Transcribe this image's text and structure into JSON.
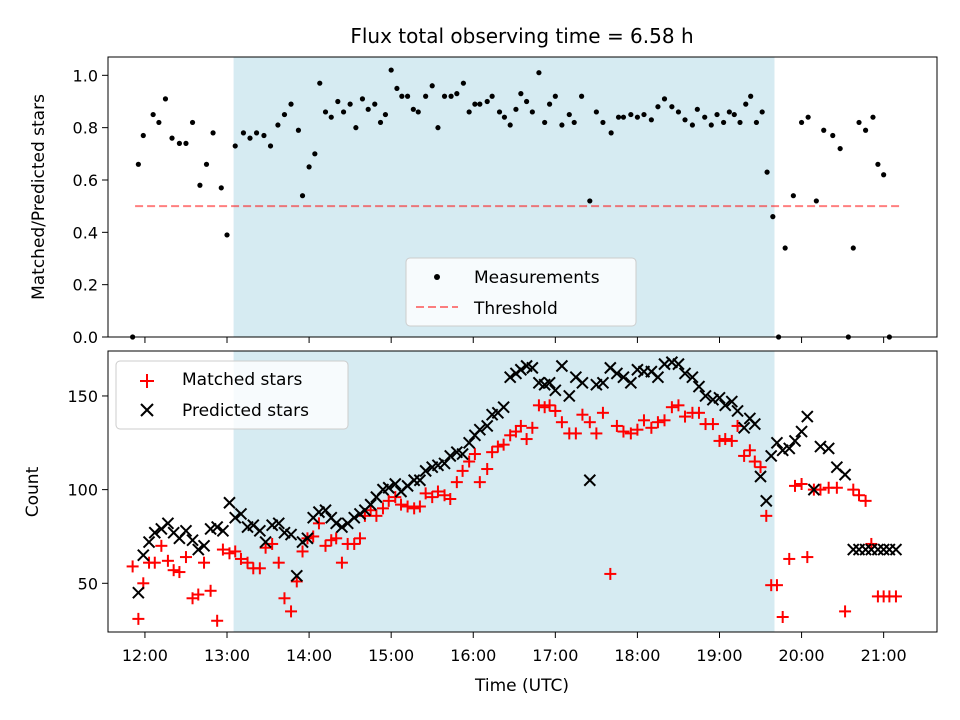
{
  "chart_data": [
    {
      "type": "scatter",
      "title": "Flux total observing time = 6.58 h",
      "ylabel": "Matched/Predicted stars",
      "xlabel": "",
      "xlim": [
        11.55,
        21.65
      ],
      "ylim": [
        0.0,
        1.07
      ],
      "yticks": [
        0.0,
        0.2,
        0.4,
        0.6,
        0.8,
        1.0
      ],
      "ytick_labels": [
        "0.0",
        "0.2",
        "0.4",
        "0.6",
        "0.8",
        "1.0"
      ],
      "xticks": [
        12,
        13,
        14,
        15,
        16,
        17,
        18,
        19,
        20,
        21
      ],
      "shaded_interval": [
        13.08,
        19.67
      ],
      "threshold": {
        "name": "Threshold",
        "x": [
          11.88,
          21.2
        ],
        "y": 0.5
      },
      "legend": {
        "placement": "lower-center",
        "entries": [
          "Measurements",
          "Threshold"
        ]
      },
      "series": [
        {
          "name": "Measurements",
          "x": [
            11.85,
            11.92,
            11.98,
            12.1,
            12.17,
            12.25,
            12.33,
            12.42,
            12.5,
            12.58,
            12.67,
            12.75,
            12.83,
            12.93,
            13.0,
            13.1,
            13.2,
            13.28,
            13.36,
            13.45,
            13.53,
            13.62,
            13.7,
            13.78,
            13.87,
            13.92,
            14.0,
            14.07,
            14.13,
            14.2,
            14.27,
            14.35,
            14.42,
            14.5,
            14.57,
            14.65,
            14.72,
            14.8,
            14.87,
            14.93,
            15.0,
            15.07,
            15.13,
            15.2,
            15.27,
            15.33,
            15.42,
            15.5,
            15.57,
            15.65,
            15.73,
            15.8,
            15.88,
            15.95,
            16.02,
            16.08,
            16.17,
            16.23,
            16.32,
            16.38,
            16.45,
            16.52,
            16.58,
            16.65,
            16.72,
            16.8,
            16.87,
            16.93,
            17.0,
            17.08,
            17.17,
            17.23,
            17.32,
            17.42,
            17.5,
            17.58,
            17.68,
            17.77,
            17.83,
            17.92,
            18.0,
            18.08,
            18.17,
            18.25,
            18.33,
            18.42,
            18.5,
            18.58,
            18.67,
            18.73,
            18.82,
            18.9,
            18.97,
            19.05,
            19.12,
            19.18,
            19.25,
            19.32,
            19.38,
            19.45,
            19.52,
            19.58,
            19.65,
            19.72,
            19.8,
            19.9,
            20.0,
            20.08,
            20.18,
            20.27,
            20.38,
            20.47,
            20.57,
            20.63,
            20.7,
            20.78,
            20.87,
            20.93,
            21.0,
            21.07
          ],
          "y": [
            0.0,
            0.66,
            0.77,
            0.85,
            0.82,
            0.91,
            0.76,
            0.74,
            0.74,
            0.82,
            0.58,
            0.66,
            0.78,
            0.57,
            0.39,
            0.73,
            0.78,
            0.76,
            0.78,
            0.77,
            0.73,
            0.81,
            0.85,
            0.89,
            0.79,
            0.54,
            0.65,
            0.7,
            0.97,
            0.86,
            0.84,
            0.9,
            0.86,
            0.89,
            0.8,
            0.91,
            0.87,
            0.89,
            0.82,
            0.85,
            1.02,
            0.95,
            0.92,
            0.92,
            0.87,
            0.86,
            0.92,
            0.96,
            0.8,
            0.92,
            0.92,
            0.93,
            0.97,
            0.86,
            0.89,
            0.89,
            0.9,
            0.92,
            0.86,
            0.84,
            0.81,
            0.87,
            0.93,
            0.9,
            0.86,
            1.01,
            0.82,
            0.89,
            0.92,
            0.81,
            0.85,
            0.82,
            0.92,
            0.52,
            0.86,
            0.82,
            0.78,
            0.84,
            0.84,
            0.85,
            0.84,
            0.85,
            0.83,
            0.88,
            0.91,
            0.88,
            0.86,
            0.83,
            0.81,
            0.87,
            0.84,
            0.81,
            0.85,
            0.82,
            0.86,
            0.85,
            0.82,
            0.89,
            0.92,
            0.82,
            0.86,
            0.63,
            0.46,
            0.0,
            0.34,
            0.54,
            0.82,
            0.84,
            0.52,
            0.79,
            0.77,
            0.72,
            0.0,
            0.34,
            0.82,
            0.79,
            0.84,
            0.66,
            0.62,
            0.0
          ]
        }
      ]
    },
    {
      "type": "scatter",
      "title": "",
      "xlabel": "Time (UTC)",
      "ylabel": "Count",
      "xlim": [
        11.55,
        21.65
      ],
      "ylim": [
        24,
        174
      ],
      "yticks": [
        50,
        100,
        150
      ],
      "ytick_labels": [
        "50",
        "100",
        "150"
      ],
      "xticks": [
        12,
        13,
        14,
        15,
        16,
        17,
        18,
        19,
        20,
        21
      ],
      "xtick_labels": [
        "12:00",
        "13:00",
        "14:00",
        "15:00",
        "16:00",
        "17:00",
        "18:00",
        "19:00",
        "20:00",
        "21:00"
      ],
      "shaded_interval": [
        13.08,
        19.67
      ],
      "legend": {
        "placement": "top-left",
        "entries": [
          "Matched stars",
          "Predicted stars"
        ]
      },
      "series": [
        {
          "name": "Matched stars",
          "x": [
            11.85,
            11.92,
            11.98,
            12.05,
            12.12,
            12.2,
            12.28,
            12.35,
            12.42,
            12.5,
            12.58,
            12.65,
            12.72,
            12.8,
            12.88,
            12.95,
            13.03,
            13.1,
            13.17,
            13.25,
            13.32,
            13.4,
            13.47,
            13.55,
            13.63,
            13.7,
            13.78,
            13.85,
            13.92,
            13.98,
            14.05,
            14.12,
            14.2,
            14.27,
            14.33,
            14.4,
            14.47,
            14.55,
            14.62,
            14.68,
            14.75,
            14.82,
            14.9,
            14.97,
            15.05,
            15.12,
            15.2,
            15.28,
            15.35,
            15.42,
            15.5,
            15.57,
            15.65,
            15.72,
            15.8,
            15.87,
            15.95,
            16.02,
            16.08,
            16.17,
            16.23,
            16.3,
            16.37,
            16.45,
            16.52,
            16.58,
            16.65,
            16.72,
            16.8,
            16.87,
            16.93,
            17.0,
            17.08,
            17.17,
            17.25,
            17.33,
            17.42,
            17.5,
            17.58,
            17.67,
            17.75,
            17.83,
            17.92,
            18.0,
            18.08,
            18.17,
            18.25,
            18.33,
            18.42,
            18.5,
            18.58,
            18.67,
            18.75,
            18.83,
            18.92,
            19.0,
            19.07,
            19.15,
            19.22,
            19.3,
            19.37,
            19.43,
            19.5,
            19.57,
            19.63,
            19.7,
            19.77,
            19.85,
            19.92,
            20.0,
            20.07,
            20.15,
            20.23,
            20.33,
            20.43,
            20.53,
            20.63,
            20.7,
            20.78,
            20.85,
            20.93,
            21.0,
            21.07,
            21.15
          ],
          "y": [
            59,
            31,
            50,
            61,
            61,
            70,
            62,
            57,
            56,
            64,
            42,
            44,
            61,
            46,
            30,
            68,
            66,
            67,
            63,
            61,
            58,
            58,
            69,
            71,
            61,
            42,
            35,
            51,
            67,
            74,
            75,
            82,
            70,
            73,
            74,
            61,
            71,
            71,
            74,
            86,
            89,
            86,
            90,
            94,
            96,
            92,
            91,
            90,
            91,
            98,
            96,
            99,
            97,
            95,
            104,
            110,
            115,
            119,
            104,
            111,
            120,
            123,
            124,
            129,
            131,
            134,
            127,
            133,
            145,
            144,
            145,
            142,
            136,
            130,
            130,
            140,
            136,
            130,
            141,
            55,
            134,
            131,
            130,
            132,
            137,
            133,
            136,
            137,
            144,
            145,
            139,
            141,
            141,
            135,
            135,
            126,
            127,
            126,
            134,
            118,
            121,
            115,
            112,
            86,
            49,
            49,
            32,
            63,
            102,
            103,
            64,
            100,
            100,
            101,
            101,
            35,
            100,
            97,
            94,
            71,
            43,
            43,
            43,
            43
          ]
        },
        {
          "name": "Predicted stars",
          "x": [
            11.92,
            11.98,
            12.05,
            12.12,
            12.2,
            12.28,
            12.35,
            12.42,
            12.5,
            12.58,
            12.65,
            12.72,
            12.8,
            12.88,
            12.95,
            13.03,
            13.1,
            13.17,
            13.25,
            13.32,
            13.4,
            13.47,
            13.55,
            13.63,
            13.7,
            13.78,
            13.85,
            13.92,
            13.98,
            14.05,
            14.12,
            14.2,
            14.27,
            14.33,
            14.4,
            14.47,
            14.55,
            14.62,
            14.68,
            14.75,
            14.82,
            14.9,
            14.97,
            15.05,
            15.12,
            15.2,
            15.28,
            15.35,
            15.42,
            15.5,
            15.57,
            15.65,
            15.72,
            15.8,
            15.87,
            15.95,
            16.02,
            16.08,
            16.17,
            16.23,
            16.3,
            16.37,
            16.45,
            16.52,
            16.58,
            16.65,
            16.72,
            16.8,
            16.87,
            16.93,
            17.0,
            17.08,
            17.17,
            17.25,
            17.33,
            17.42,
            17.5,
            17.58,
            17.67,
            17.75,
            17.83,
            17.92,
            18.0,
            18.08,
            18.17,
            18.25,
            18.33,
            18.42,
            18.5,
            18.58,
            18.67,
            18.75,
            18.83,
            18.92,
            19.0,
            19.07,
            19.15,
            19.22,
            19.3,
            19.37,
            19.43,
            19.5,
            19.57,
            19.63,
            19.7,
            19.77,
            19.85,
            19.92,
            20.0,
            20.07,
            20.15,
            20.23,
            20.33,
            20.43,
            20.53,
            20.63,
            20.7,
            20.78,
            20.85,
            20.93,
            21.0,
            21.07,
            21.15
          ],
          "y": [
            45,
            65,
            72,
            77,
            79,
            82,
            77,
            74,
            78,
            73,
            68,
            70,
            79,
            80,
            78,
            93,
            85,
            87,
            80,
            81,
            78,
            72,
            81,
            82,
            77,
            76,
            54,
            72,
            74,
            85,
            88,
            89,
            85,
            82,
            80,
            82,
            85,
            87,
            89,
            92,
            96,
            100,
            101,
            103,
            99,
            102,
            105,
            105,
            110,
            112,
            113,
            114,
            118,
            120,
            119,
            125,
            129,
            132,
            134,
            140,
            141,
            144,
            160,
            162,
            164,
            166,
            165,
            157,
            156,
            157,
            153,
            166,
            150,
            160,
            157,
            105,
            156,
            157,
            165,
            162,
            160,
            157,
            164,
            163,
            163,
            160,
            167,
            168,
            167,
            162,
            160,
            155,
            150,
            148,
            149,
            145,
            147,
            142,
            133,
            138,
            135,
            107,
            94,
            118,
            125,
            121,
            122,
            126,
            131,
            139,
            100,
            123,
            122,
            112,
            108,
            68,
            68,
            68,
            68,
            68,
            68,
            68,
            68
          ]
        }
      ]
    }
  ]
}
